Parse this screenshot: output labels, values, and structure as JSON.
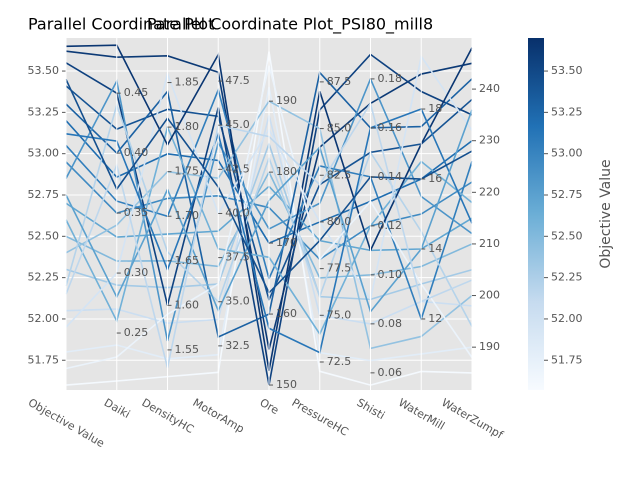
{
  "chart_data": {
    "type": "parallel",
    "title": "Parallel Coordinate Plot",
    "subtitle": "Parallel Coordinate Plot_PSI80_mill8",
    "colorbar_label": "Objective Value",
    "colormap": [
      "#f7fbff",
      "#c6dbef",
      "#6baed6",
      "#2171b5",
      "#08306b"
    ],
    "dimensions": [
      {
        "name": "Objective Value",
        "lim": [
          51.57,
          53.7
        ],
        "ticks": [
          51.75,
          {
            "value": 52,
            "label": "52.00"
          },
          52.25,
          {
            "value": 52.5,
            "label": "52.50"
          },
          52.75,
          {
            "value": 53,
            "label": "53.00"
          },
          53.25,
          {
            "value": 53.5,
            "label": "53.50"
          }
        ]
      },
      {
        "name": "Daiki",
        "lim": [
          0.2025,
          0.496
        ],
        "ticks": [
          0.25,
          {
            "value": 0.3,
            "label": "0.30"
          },
          0.35,
          {
            "value": 0.4,
            "label": "0.40"
          },
          0.45
        ]
      },
      {
        "name": "DensityHC",
        "lim": [
          1.505,
          1.9
        ],
        "ticks": [
          1.55,
          {
            "value": 1.6,
            "label": "1.60"
          },
          1.65,
          {
            "value": 1.7,
            "label": "1.70"
          },
          1.75,
          {
            "value": 1.8,
            "label": "1.80"
          },
          1.85
        ]
      },
      {
        "name": "MotorAmp",
        "lim": [
          30.0,
          49.94
        ],
        "ticks": [
          32.5,
          {
            "value": 35,
            "label": "35.0"
          },
          37.5,
          {
            "value": 40,
            "label": "40.0"
          },
          42.5,
          {
            "value": 45,
            "label": "45.0"
          },
          47.5
        ]
      },
      {
        "name": "Ore",
        "lim": [
          149.3,
          198.9
        ],
        "ticks": [
          150,
          160,
          170,
          180,
          190
        ]
      },
      {
        "name": "PressureHC",
        "lim": [
          71.0,
          89.85
        ],
        "ticks": [
          72.5,
          {
            "value": 75,
            "label": "75.0"
          },
          77.5,
          {
            "value": 80,
            "label": "80.0"
          },
          82.5,
          {
            "value": 85,
            "label": "85.0"
          },
          87.5
        ]
      },
      {
        "name": "Shisti",
        "lim": [
          0.053,
          0.1967
        ],
        "ticks": [
          0.06,
          0.08,
          {
            "value": 0.1,
            "label": "0.10"
          },
          0.12,
          0.14,
          0.16,
          0.18
        ]
      },
      {
        "name": "WaterMill",
        "lim": [
          9.97,
          20.03
        ],
        "ticks": [
          12,
          14,
          16,
          18
        ]
      },
      {
        "name": "WaterZumpf",
        "lim": [
          181.7,
          249.9
        ],
        "ticks": [
          190,
          200,
          210,
          220,
          230,
          240
        ]
      }
    ],
    "trials": [
      [
        53.62,
        0.48,
        1.88,
        48,
        155,
        84,
        0.17,
        19,
        245
      ],
      [
        53.41,
        0.42,
        1.82,
        45.5,
        162,
        82,
        0.15,
        17,
        238
      ],
      [
        53.2,
        0.38,
        1.77,
        43,
        170,
        80,
        0.13,
        16,
        230
      ],
      [
        52.95,
        0.35,
        1.72,
        41,
        175,
        78,
        0.12,
        15,
        222
      ],
      [
        52.7,
        0.33,
        1.68,
        39,
        178,
        79,
        0.11,
        14,
        215
      ],
      [
        52.5,
        0.31,
        1.65,
        37,
        180,
        77,
        0.1,
        13.5,
        210
      ],
      [
        52.3,
        0.29,
        1.62,
        36,
        184,
        76,
        0.09,
        13,
        205
      ],
      [
        52.05,
        0.27,
        1.58,
        34,
        188,
        75,
        0.08,
        12.5,
        198
      ],
      [
        51.8,
        0.24,
        1.54,
        32,
        192,
        73,
        0.065,
        11,
        190
      ],
      [
        51.6,
        0.21,
        1.52,
        31,
        197,
        72,
        0.055,
        10.5,
        185
      ],
      [
        53.55,
        0.45,
        1.6,
        46,
        150,
        86,
        0.19,
        18.5,
        235
      ],
      [
        53.3,
        0.4,
        1.84,
        33,
        160,
        88,
        0.16,
        17.5,
        242
      ],
      [
        53.05,
        0.36,
        1.7,
        47,
        165,
        83,
        0.14,
        12,
        226
      ],
      [
        52.85,
        0.46,
        1.56,
        44,
        172,
        81,
        0.18,
        15.5,
        212
      ],
      [
        52.6,
        0.26,
        1.8,
        38,
        168,
        74,
        0.12,
        16.5,
        218
      ],
      [
        52.4,
        0.34,
        1.75,
        42,
        190,
        85,
        0.07,
        11.5,
        200
      ],
      [
        52.2,
        0.44,
        1.66,
        35,
        182,
        76,
        0.15,
        14.5,
        194
      ],
      [
        51.95,
        0.3,
        1.86,
        40,
        186,
        80,
        0.09,
        19.5,
        232
      ],
      [
        53.65,
        0.49,
        1.78,
        49,
        152,
        87,
        0.11,
        17,
        248
      ],
      [
        51.7,
        0.23,
        1.59,
        36,
        195,
        78,
        0.13,
        13,
        188
      ],
      [
        53.12,
        0.41,
        1.64,
        44.5,
        158,
        73,
        0.16,
        18,
        214
      ],
      [
        52.75,
        0.28,
        1.73,
        34.5,
        176,
        84,
        0.085,
        14,
        236
      ],
      [
        52.15,
        0.39,
        1.53,
        45,
        185,
        82,
        0.17,
        12.5,
        203
      ],
      [
        53.45,
        0.37,
        1.81,
        41.5,
        163,
        79,
        0.14,
        16,
        228
      ]
    ]
  }
}
